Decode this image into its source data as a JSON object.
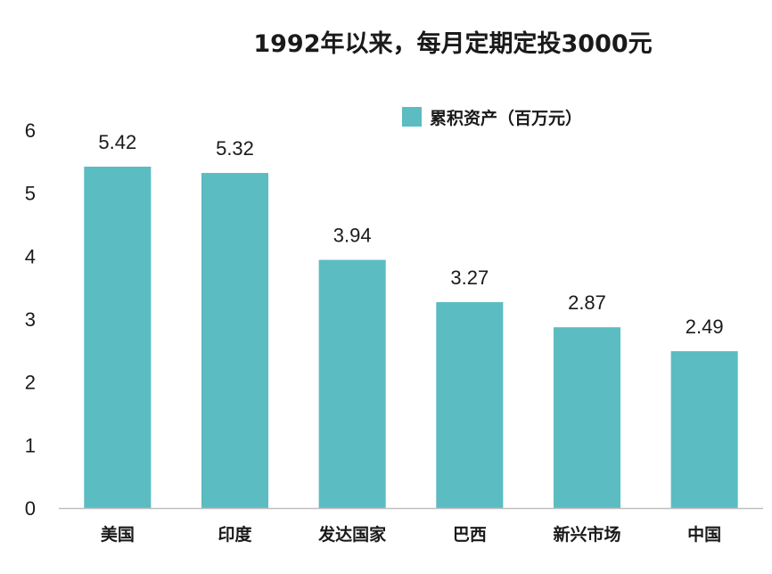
{
  "chart_data": {
    "type": "bar",
    "title": "1992年以来，每月定期定投3000元",
    "categories": [
      "美国",
      "印度",
      "发达国家",
      "巴西",
      "新兴市场",
      "中国"
    ],
    "series": [
      {
        "name": "累积资产（百万元）",
        "values": [
          5.42,
          5.32,
          3.94,
          3.27,
          2.87,
          2.49
        ]
      }
    ],
    "data_labels": [
      "5.42",
      "5.32",
      "3.94",
      "3.27",
      "2.87",
      "2.49"
    ],
    "y_ticks": [
      "0",
      "1",
      "2",
      "3",
      "4",
      "5",
      "6"
    ],
    "ylim": [
      0,
      6
    ],
    "grid": false,
    "legend_position": "top-right",
    "colors": {
      "bar": "#5bbcc2",
      "axis": "#bfbfbf"
    }
  }
}
